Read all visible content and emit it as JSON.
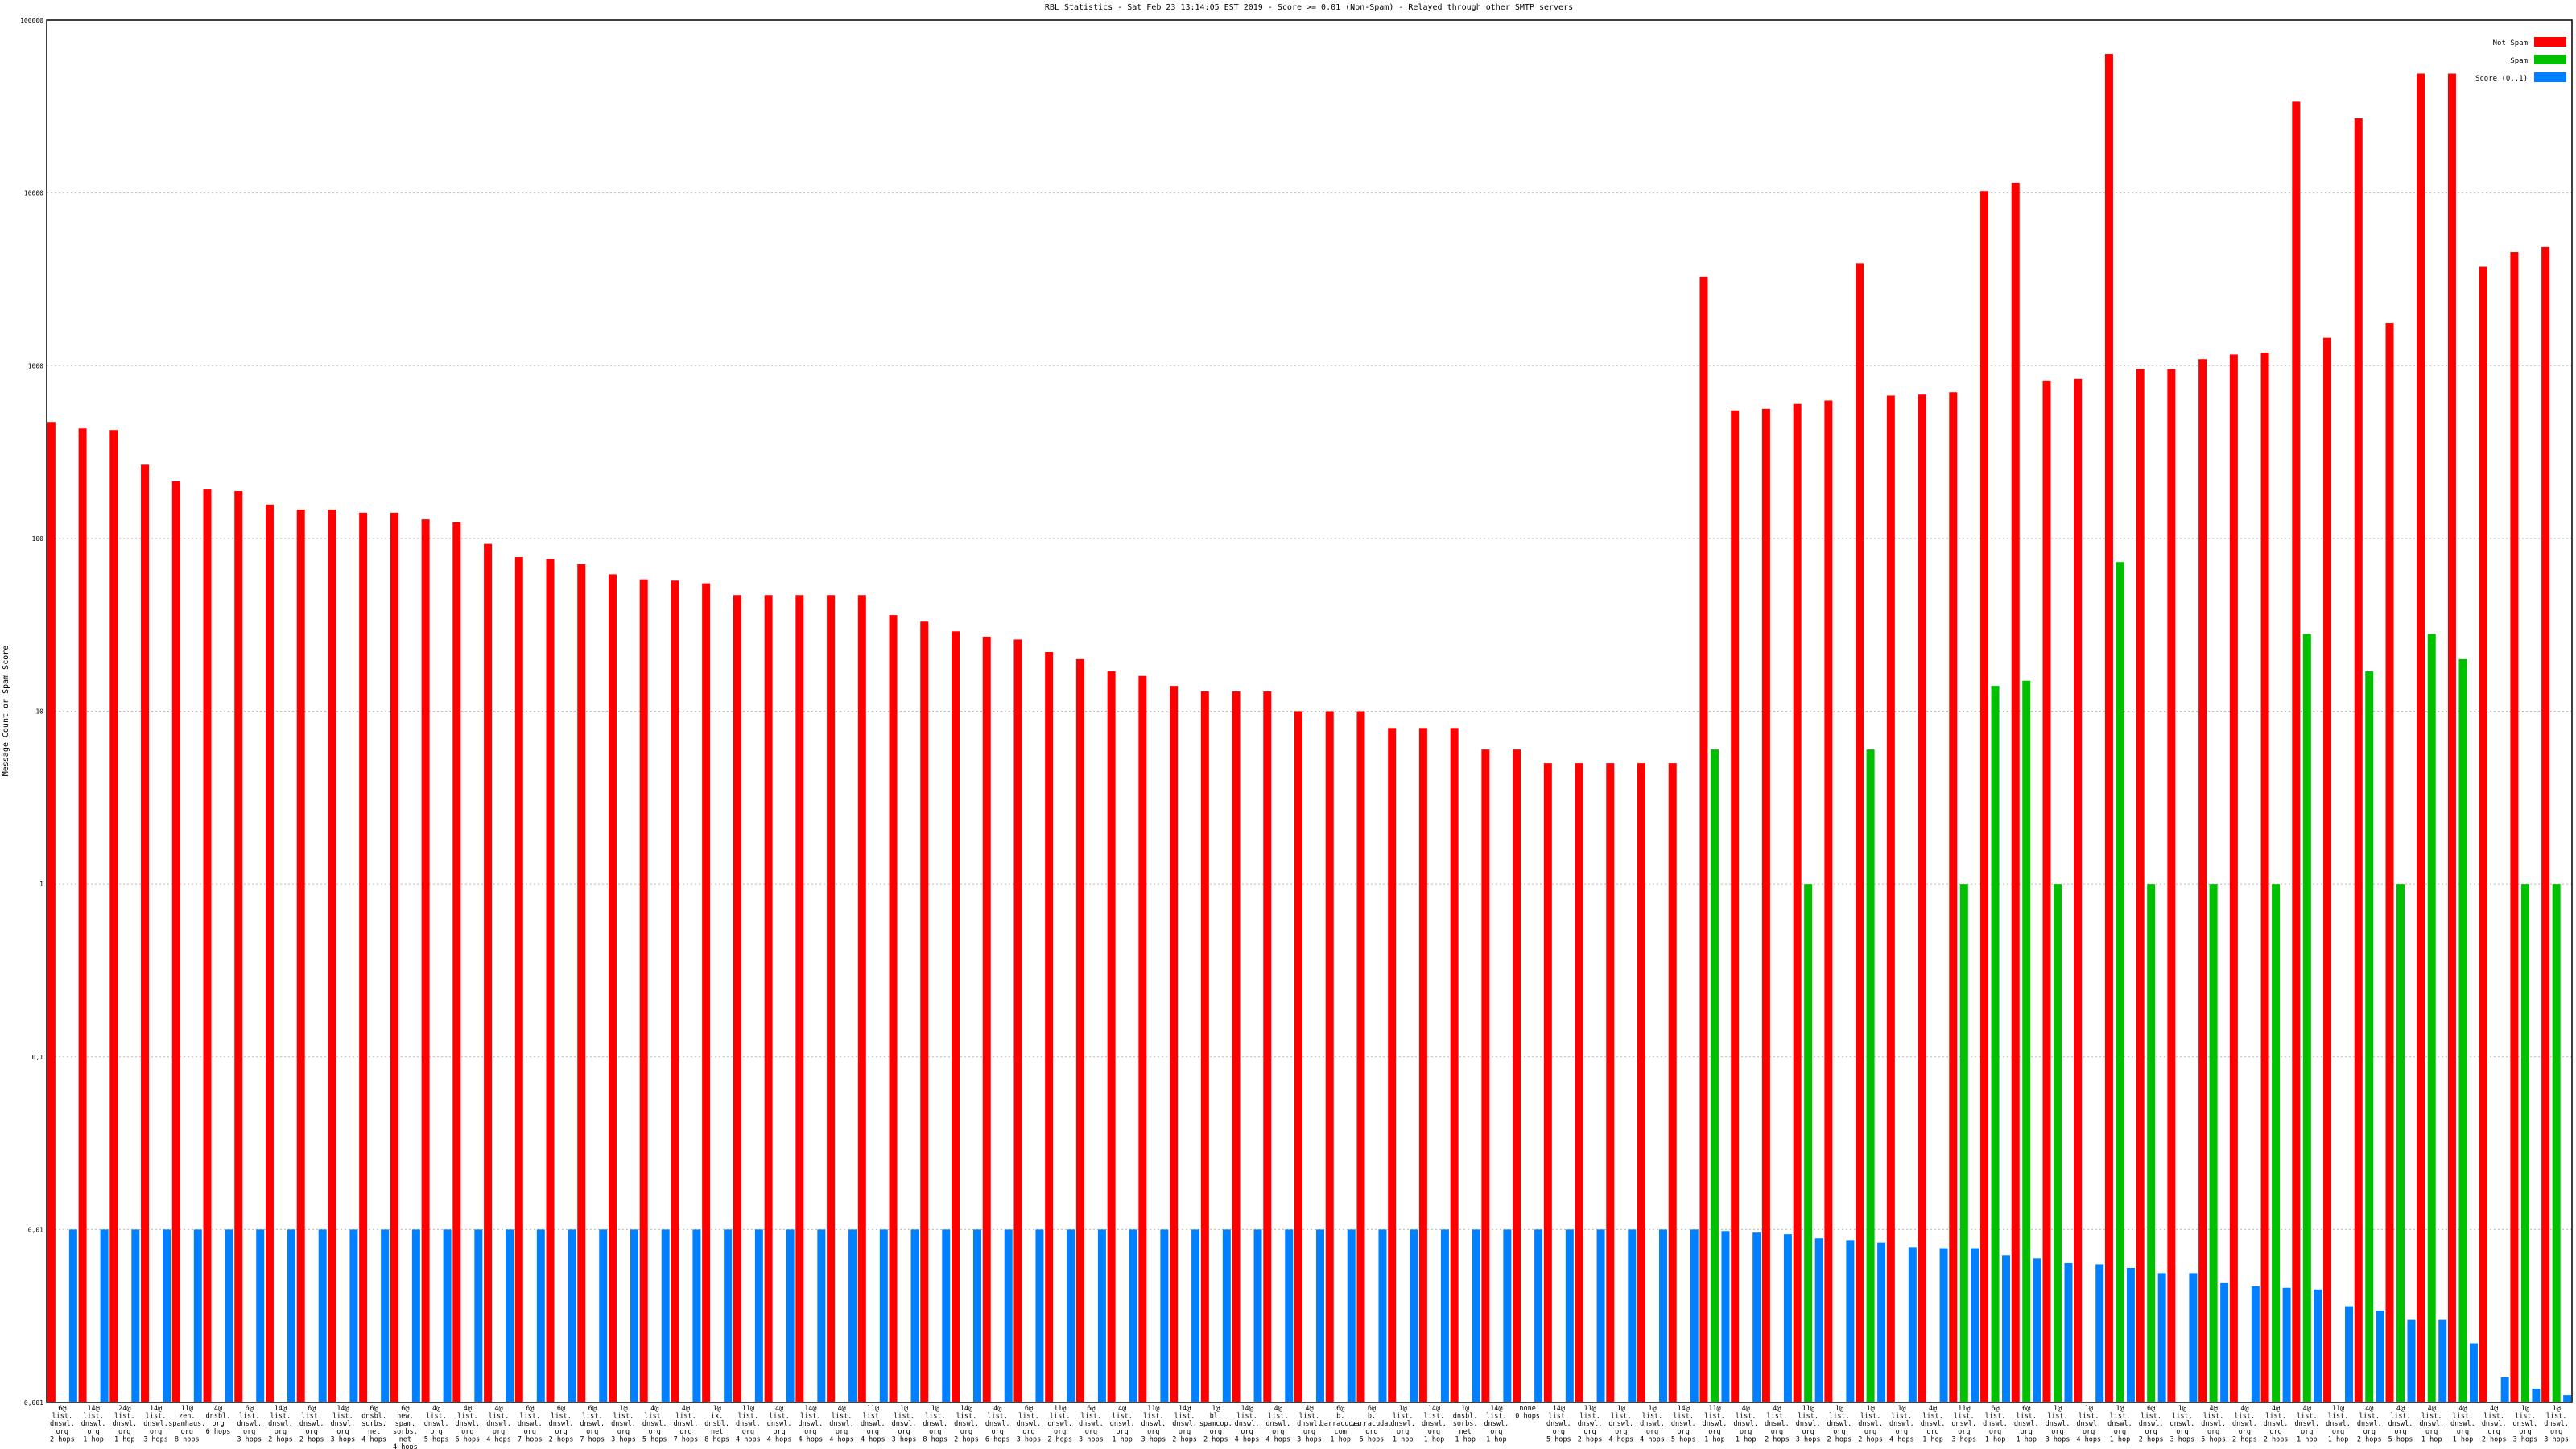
{
  "chart_data": {
    "type": "bar",
    "title": "RBL Statistics - Sat Feb 23 13:14:05 EST 2019 - Score >= 0.01 (Non-Spam) - Relayed through other SMTP servers",
    "y_label": "Message Count or Spam Score",
    "log_scale": true,
    "grid": true,
    "legend": "top-right",
    "ylim": [
      0.001,
      100000
    ],
    "yticks": [
      {
        "value": 0.001,
        "label": "0,001"
      },
      {
        "value": 0.01,
        "label": "0,01"
      },
      {
        "value": 0.1,
        "label": "0,1"
      },
      1,
      10,
      100,
      1000,
      10000,
      100000
    ],
    "categories": [
      "6@\nlist.\ndnswl.\norg\n2 hops",
      "14@\nlist.\ndnswl.\norg\n1 hop",
      "24@\nlist.\ndnswl.\norg\n1 hop",
      "14@\nlist.\ndnswl.\norg\n3 hops",
      "11@\nzen.\nspamhaus.\norg\n8 hops",
      "4@\ndnsbl.\norg\n6 hops",
      "6@\nlist.\ndnswl.\norg\n3 hops",
      "14@\nlist.\ndnswl.\norg\n2 hops",
      "6@\nlist.\ndnswl.\norg\n2 hops",
      "14@\nlist.\ndnswl.\norg\n3 hops",
      "6@\ndnsbl.\nsorbs.\nnet\n4 hops",
      "6@\nnew.\nspam.\nsorbs.\nnet\n4 hops",
      "4@\nlist.\ndnswl.\norg\n5 hops",
      "4@\nlist.\ndnswl.\norg\n6 hops",
      "4@\nlist.\ndnswl.\norg\n4 hops",
      "6@\nlist.\ndnswl.\norg\n7 hops",
      "6@\nlist.\ndnswl.\norg\n2 hops",
      "6@\nlist.\ndnswl.\norg\n7 hops",
      "1@\nlist.\ndnswl.\norg\n3 hops",
      "4@\nlist.\ndnswl.\norg\n5 hops",
      "4@\nlist.\ndnswl.\norg\n7 hops",
      "1@\nix.\ndnsbl.\nnet\n8 hops",
      "11@\nlist.\ndnswl.\norg\n4 hops",
      "4@\nlist.\ndnswl.\norg\n4 hops",
      "14@\nlist.\ndnswl.\norg\n4 hops",
      "4@\nlist.\ndnswl.\norg\n4 hops",
      "11@\nlist.\ndnswl.\norg\n4 hops",
      "1@\nlist.\ndnswl.\norg\n3 hops",
      "1@\nlist.\ndnswl.\norg\n8 hops",
      "14@\nlist.\ndnswl.\norg\n2 hops",
      "4@\nlist.\ndnswl.\norg\n6 hops",
      "6@\nlist.\ndnswl.\norg\n3 hops",
      "11@\nlist.\ndnswl.\norg\n2 hops",
      "6@\nlist.\ndnswl.\norg\n3 hops",
      "4@\nlist.\ndnswl.\norg\n1 hop",
      "11@\nlist.\ndnswl.\norg\n3 hops",
      "14@\nlist.\ndnswl.\norg\n2 hops",
      "1@\nbl.\nspamcop.\norg\n2 hops",
      "14@\nlist.\ndnswl.\norg\n4 hops",
      "4@\nlist.\ndnswl.\norg\n4 hops",
      "4@\nlist.\ndnswl.\norg\n3 hops",
      "6@\nb.\nbarracuda.\ncom\n1 hop",
      "6@\nb.\nbarracuda.\norg\n5 hops",
      "1@\nlist.\ndnswl.\norg\n1 hop",
      "14@\nlist.\ndnswl.\norg\n1 hop",
      "1@\ndnsbl.\nsorbs.\nnet\n1 hop",
      "14@\nlist.\ndnswl.\norg\n1 hop",
      "none\n0 hops",
      "14@\nlist.\ndnswl.\norg\n5 hops",
      "11@\nlist.\ndnswl.\norg\n2 hops",
      "1@\nlist.\ndnswl.\norg\n4 hops",
      "1@\nlist.\ndnswl.\norg\n4 hops",
      "14@\nlist.\ndnswl.\norg\n5 hops",
      "11@\nlist.\ndnswl.\norg\n1 hop",
      "4@\nlist.\ndnswl.\norg\n1 hop",
      "4@\nlist.\ndnswl.\norg\n2 hops",
      "11@\nlist.\ndnswl.\norg\n3 hops",
      "1@\nlist.\ndnswl.\norg\n2 hops",
      "1@\nlist.\ndnswl.\norg\n2 hops",
      "1@\nlist.\ndnswl.\norg\n4 hops",
      "4@\nlist.\ndnswl.\norg\n1 hop",
      "11@\nlist.\ndnswl.\norg\n3 hops",
      "6@\nlist.\ndnswl.\norg\n1 hop",
      "6@\nlist.\ndnswl.\norg\n1 hop",
      "1@\nlist.\ndnswl.\norg\n3 hops",
      "1@\nlist.\ndnswl.\norg\n4 hops",
      "1@\nlist.\ndnswl.\norg\n1 hop",
      "6@\nlist.\ndnswl.\norg\n2 hops",
      "1@\nlist.\ndnswl.\norg\n3 hops",
      "4@\nlist.\ndnswl.\norg\n5 hops",
      "4@\nlist.\ndnswl.\norg\n2 hops",
      "4@\nlist.\ndnswl.\norg\n2 hops",
      "4@\nlist.\ndnswl.\norg\n1 hop",
      "11@\nlist.\ndnswl.\norg\n1 hop",
      "4@\nlist.\ndnswl.\norg\n2 hops",
      "4@\nlist.\ndnswl.\norg\n5 hops",
      "4@\nlist.\ndnswl.\norg\n1 hop",
      "4@\nlist.\ndnswl.\norg\n1 hop",
      "4@\nlist.\ndnswl.\norg\n2 hops",
      "1@\nlist.\ndnswl.\norg\n3 hops",
      "1@\nlist.\ndnswl.\norg\n3 hops"
    ],
    "series": [
      {
        "name": "Not Spam",
        "color": "#ff0000",
        "values": [
          472,
          433,
          424,
          267,
          214,
          192,
          188,
          157,
          147,
          147,
          141,
          141,
          129,
          124,
          93,
          78,
          76,
          71,
          62,
          58,
          57,
          55,
          47,
          47,
          47,
          47,
          47,
          36,
          33,
          29,
          27,
          26,
          22,
          20,
          17,
          16,
          14,
          13,
          13,
          13,
          10,
          10,
          10,
          8,
          8,
          8,
          6,
          6,
          5,
          5,
          5,
          5,
          5,
          3270,
          551,
          563,
          601,
          629,
          3900,
          671,
          680,
          702,
          10260,
          11460,
          819,
          837,
          63700,
          955,
          955,
          1090,
          1160,
          1190,
          33700,
          1450,
          27000,
          1770,
          49000,
          49000,
          3730,
          4550,
          4860
        ]
      },
      {
        "name": "Spam",
        "color": "#00c000",
        "values": [
          null,
          null,
          null,
          null,
          null,
          null,
          null,
          null,
          null,
          null,
          null,
          null,
          null,
          null,
          null,
          null,
          null,
          null,
          null,
          null,
          null,
          null,
          null,
          null,
          null,
          null,
          null,
          null,
          null,
          null,
          null,
          null,
          null,
          null,
          null,
          null,
          null,
          null,
          null,
          null,
          null,
          null,
          null,
          null,
          null,
          null,
          null,
          null,
          null,
          null,
          null,
          null,
          null,
          6,
          null,
          null,
          1,
          null,
          6,
          null,
          null,
          1,
          14,
          15,
          1,
          null,
          73,
          1,
          null,
          1,
          null,
          1,
          28,
          null,
          17,
          1,
          28,
          20,
          null,
          1,
          1
        ]
      },
      {
        "name": "Score (0..1)",
        "color": "#0080ff",
        "values": [
          0.01,
          0.01,
          0.01,
          0.01,
          0.01,
          0.01,
          0.01,
          0.01,
          0.01,
          0.01,
          0.01,
          0.01,
          0.01,
          0.01,
          0.01,
          0.01,
          0.01,
          0.01,
          0.01,
          0.01,
          0.01,
          0.01,
          0.01,
          0.01,
          0.01,
          0.01,
          0.01,
          0.01,
          0.01,
          0.01,
          0.01,
          0.01,
          0.01,
          0.01,
          0.01,
          0.01,
          0.01,
          0.01,
          0.01,
          0.01,
          0.01,
          0.01,
          0.01,
          0.01,
          0.01,
          0.01,
          0.01,
          0.01,
          0.01,
          0.01,
          0.01,
          0.01,
          0.01,
          0.0098,
          0.0096,
          0.0094,
          0.0089,
          0.0087,
          0.0084,
          0.0079,
          0.0078,
          0.0078,
          0.0071,
          0.0068,
          0.0064,
          0.0063,
          0.006,
          0.0056,
          0.0056,
          0.0049,
          0.0047,
          0.0046,
          0.0045,
          0.0036,
          0.0034,
          0.003,
          0.003,
          0.0022,
          0.0014,
          0.0012,
          0.0011
        ]
      }
    ]
  }
}
